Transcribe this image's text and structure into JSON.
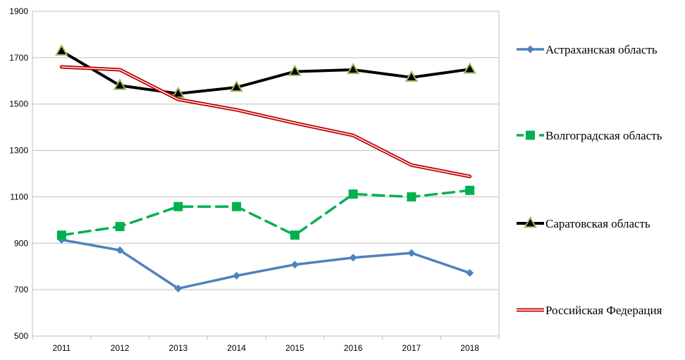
{
  "chart_data": {
    "type": "line",
    "title": "",
    "xlabel": "",
    "ylabel": "",
    "categories": [
      "2011",
      "2012",
      "2013",
      "2014",
      "2015",
      "2016",
      "2017",
      "2018"
    ],
    "ylim": [
      500,
      1900
    ],
    "yticks": [
      500,
      700,
      900,
      1100,
      1300,
      1500,
      1700,
      1900
    ],
    "grid": "horizontal",
    "legend_position": "right",
    "series": [
      {
        "name": "Астраханская  область",
        "values": [
          915,
          870,
          705,
          760,
          808,
          838,
          858,
          772
        ],
        "color": "#4f81bd",
        "marker": "diamond",
        "style": "solid"
      },
      {
        "name": "Волгоградская  область",
        "values": [
          935,
          972,
          1058,
          1058,
          935,
          1112,
          1100,
          1128
        ],
        "color": "#00b050",
        "marker": "square",
        "style": "dashed"
      },
      {
        "name": "Саратовская  область",
        "values": [
          1728,
          1580,
          1545,
          1572,
          1640,
          1648,
          1615,
          1650
        ],
        "color": "#000000",
        "marker": "triangle",
        "marker_fill": "#000000",
        "marker_edge": "#9bbb59",
        "style": "solid"
      },
      {
        "name": "Российская  Федерация",
        "values": [
          1660,
          1648,
          1520,
          1475,
          1418,
          1365,
          1237,
          1188
        ],
        "color": "#c00000",
        "marker": "none",
        "style": "double"
      }
    ]
  }
}
